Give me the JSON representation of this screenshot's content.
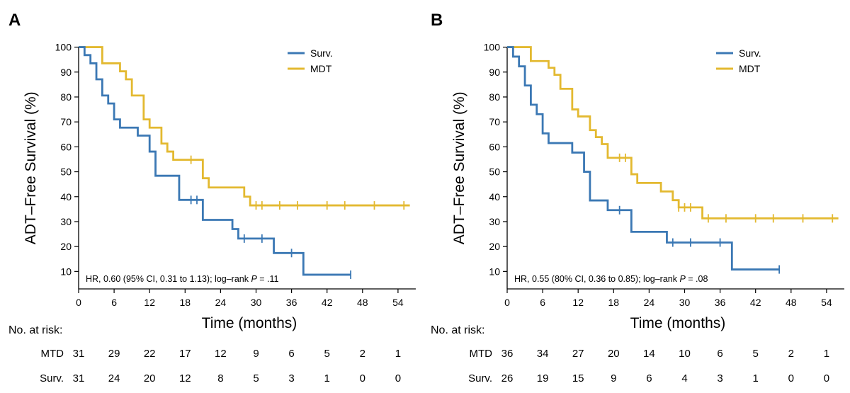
{
  "chart_data": [
    {
      "type": "line",
      "panel_label": "A",
      "xlabel": "Time (months)",
      "ylabel": "ADT–Free Survival (%)",
      "xlim": [
        0,
        57
      ],
      "ylim": [
        3,
        100
      ],
      "x_ticks": [
        0,
        6,
        12,
        18,
        24,
        30,
        36,
        42,
        48,
        54
      ],
      "y_ticks": [
        10,
        20,
        30,
        40,
        50,
        60,
        70,
        80,
        90,
        100
      ],
      "grid": false,
      "legend_position": "top-right",
      "annotation": {
        "text_before": "HR, 0.60 (95% CI, 0.31 to 1.13); log–rank ",
        "p_label": "P",
        "text_after": " = .11"
      },
      "series": [
        {
          "name": "Surv.",
          "color": "#3b78b4",
          "steps": [
            [
              0,
              100
            ],
            [
              1,
              96.8
            ],
            [
              2,
              93.5
            ],
            [
              3,
              87.1
            ],
            [
              4,
              80.6
            ],
            [
              5,
              77.4
            ],
            [
              6,
              71
            ],
            [
              7,
              67.7
            ],
            [
              10,
              64.5
            ],
            [
              12,
              58.1
            ],
            [
              13,
              48.4
            ],
            [
              17,
              38.7
            ],
            [
              21,
              30.7
            ],
            [
              26,
              27
            ],
            [
              27,
              23.2
            ],
            [
              33,
              17.4
            ],
            [
              38,
              8.7
            ],
            [
              46,
              8.7
            ]
          ],
          "censored": [
            [
              19,
              38.7
            ],
            [
              20,
              38.7
            ],
            [
              28,
              23.2
            ],
            [
              31,
              23.2
            ],
            [
              36,
              17.4
            ],
            [
              46,
              8.7
            ]
          ]
        },
        {
          "name": "MDT",
          "color": "#e3b930",
          "steps": [
            [
              0,
              100
            ],
            [
              4,
              93.5
            ],
            [
              7,
              90.3
            ],
            [
              8,
              87.1
            ],
            [
              9,
              80.6
            ],
            [
              11,
              71
            ],
            [
              12,
              67.7
            ],
            [
              14,
              61.3
            ],
            [
              15,
              58.1
            ],
            [
              16,
              54.8
            ],
            [
              21,
              47.4
            ],
            [
              22,
              43.7
            ],
            [
              28,
              40
            ],
            [
              29,
              36.5
            ],
            [
              56,
              36.5
            ]
          ],
          "censored": [
            [
              19,
              54.8
            ],
            [
              30,
              36.5
            ],
            [
              31,
              36.5
            ],
            [
              34,
              36.5
            ],
            [
              37,
              36.5
            ],
            [
              42,
              36.5
            ],
            [
              45,
              36.5
            ],
            [
              50,
              36.5
            ],
            [
              55,
              36.5
            ]
          ]
        }
      ],
      "risk_table": {
        "title": "No. at risk:",
        "times": [
          0,
          6,
          12,
          18,
          24,
          30,
          36,
          42,
          48,
          54
        ],
        "rows": [
          {
            "label": "MTD",
            "values": [
              31,
              29,
              22,
              17,
              12,
              9,
              6,
              5,
              2,
              1
            ]
          },
          {
            "label": "Surv.",
            "values": [
              31,
              24,
              20,
              12,
              8,
              5,
              3,
              1,
              0,
              0
            ]
          }
        ]
      }
    },
    {
      "type": "line",
      "panel_label": "B",
      "xlabel": "Time (months)",
      "ylabel": "ADT–Free Survival (%)",
      "xlim": [
        0,
        57
      ],
      "ylim": [
        3,
        100
      ],
      "x_ticks": [
        0,
        6,
        12,
        18,
        24,
        30,
        36,
        42,
        48,
        54
      ],
      "y_ticks": [
        10,
        20,
        30,
        40,
        50,
        60,
        70,
        80,
        90,
        100
      ],
      "grid": false,
      "legend_position": "top-right",
      "annotation": {
        "text_before": "HR, 0.55 (80% CI, 0.36 to 0.85); log–rank ",
        "p_label": "P",
        "text_after": " = .08"
      },
      "series": [
        {
          "name": "Surv.",
          "color": "#3b78b4",
          "steps": [
            [
              0,
              100
            ],
            [
              1,
              96.2
            ],
            [
              2,
              92.3
            ],
            [
              3,
              84.6
            ],
            [
              4,
              76.9
            ],
            [
              5,
              73.1
            ],
            [
              6,
              65.4
            ],
            [
              7,
              61.5
            ],
            [
              11,
              57.7
            ],
            [
              13,
              50
            ],
            [
              14,
              38.5
            ],
            [
              17,
              34.6
            ],
            [
              21,
              25.9
            ],
            [
              27,
              21.6
            ],
            [
              38,
              10.8
            ],
            [
              46,
              10.8
            ]
          ],
          "censored": [
            [
              19,
              34.6
            ],
            [
              28,
              21.6
            ],
            [
              31,
              21.6
            ],
            [
              36,
              21.6
            ],
            [
              46,
              10.8
            ]
          ]
        },
        {
          "name": "MDT",
          "color": "#e3b930",
          "steps": [
            [
              0,
              100
            ],
            [
              4,
              94.4
            ],
            [
              7,
              91.7
            ],
            [
              8,
              88.9
            ],
            [
              9,
              83.3
            ],
            [
              11,
              75
            ],
            [
              12,
              72.2
            ],
            [
              14,
              66.7
            ],
            [
              15,
              63.9
            ],
            [
              16,
              61.1
            ],
            [
              17,
              55.6
            ],
            [
              21,
              49
            ],
            [
              22,
              45.5
            ],
            [
              26,
              42.1
            ],
            [
              28,
              38.6
            ],
            [
              29,
              35.7
            ],
            [
              33,
              31.3
            ],
            [
              56,
              31.3
            ]
          ],
          "censored": [
            [
              19,
              55.6
            ],
            [
              20,
              55.6
            ],
            [
              29,
              35.7
            ],
            [
              30,
              35.7
            ],
            [
              31,
              35.7
            ],
            [
              34,
              31.3
            ],
            [
              37,
              31.3
            ],
            [
              42,
              31.3
            ],
            [
              45,
              31.3
            ],
            [
              50,
              31.3
            ],
            [
              55,
              31.3
            ]
          ]
        }
      ],
      "risk_table": {
        "title": "No. at risk:",
        "times": [
          0,
          6,
          12,
          18,
          24,
          30,
          36,
          42,
          48,
          54
        ],
        "rows": [
          {
            "label": "MTD",
            "values": [
              36,
              34,
              27,
              20,
              14,
              10,
              6,
              5,
              2,
              1
            ]
          },
          {
            "label": "Surv.",
            "values": [
              26,
              19,
              15,
              9,
              6,
              4,
              3,
              1,
              0,
              0
            ]
          }
        ]
      }
    }
  ]
}
